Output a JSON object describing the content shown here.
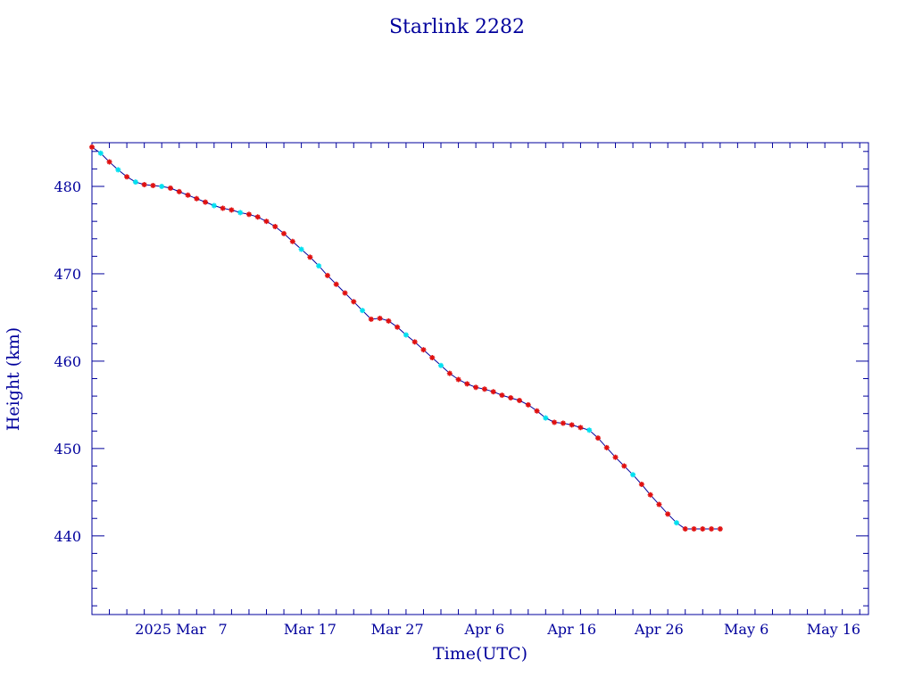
{
  "chart_data": {
    "type": "scatter",
    "title": "Starlink 2282",
    "xlabel": "Time(UTC)",
    "ylabel": "Height (km)",
    "xlim": [
      "2025-02-20",
      "2025-05-20"
    ],
    "ylim": [
      431,
      485
    ],
    "x_ticks": [
      {
        "date": "2025-03-01",
        "label": "2025 Mar"
      },
      {
        "date": "2025-03-07",
        "label": "7"
      },
      {
        "date": "2025-03-17",
        "label": "Mar 17"
      },
      {
        "date": "2025-03-27",
        "label": "Mar 27"
      },
      {
        "date": "2025-04-06",
        "label": "Apr  6"
      },
      {
        "date": "2025-04-16",
        "label": "Apr 16"
      },
      {
        "date": "2025-04-26",
        "label": "Apr 26"
      },
      {
        "date": "2025-05-06",
        "label": "May  6"
      },
      {
        "date": "2025-05-16",
        "label": "May 16"
      }
    ],
    "y_ticks": [
      440,
      450,
      460,
      470,
      480
    ],
    "grid": false,
    "colors": {
      "axis": "#00009c",
      "points": "#e01010",
      "alt_points": "#00e0f0",
      "line": "#00009c"
    },
    "series": [
      {
        "x": [
          "2025-02-20",
          "2025-02-21",
          "2025-02-22",
          "2025-02-23",
          "2025-02-24",
          "2025-02-25",
          "2025-02-26",
          "2025-02-27",
          "2025-02-28",
          "2025-03-01",
          "2025-03-02",
          "2025-03-03",
          "2025-03-04",
          "2025-03-05",
          "2025-03-06",
          "2025-03-07",
          "2025-03-08",
          "2025-03-09",
          "2025-03-10",
          "2025-03-11",
          "2025-03-12",
          "2025-03-13",
          "2025-03-14",
          "2025-03-15",
          "2025-03-16",
          "2025-03-17",
          "2025-03-18",
          "2025-03-19",
          "2025-03-20",
          "2025-03-21",
          "2025-03-22",
          "2025-03-23",
          "2025-03-24",
          "2025-03-25",
          "2025-03-26",
          "2025-03-27",
          "2025-03-28",
          "2025-03-29",
          "2025-03-30",
          "2025-03-31",
          "2025-04-01",
          "2025-04-02",
          "2025-04-03",
          "2025-04-04",
          "2025-04-05",
          "2025-04-06",
          "2025-04-07",
          "2025-04-08",
          "2025-04-09",
          "2025-04-10",
          "2025-04-11",
          "2025-04-12",
          "2025-04-13",
          "2025-04-14",
          "2025-04-15",
          "2025-04-16",
          "2025-04-17",
          "2025-04-18",
          "2025-04-19",
          "2025-04-20",
          "2025-04-21",
          "2025-04-22",
          "2025-04-23",
          "2025-04-24",
          "2025-04-25",
          "2025-04-26",
          "2025-04-27",
          "2025-04-28",
          "2025-04-29",
          "2025-04-30",
          "2025-05-01",
          "2025-05-02",
          "2025-05-03"
        ],
        "y": [
          484.5,
          483.8,
          482.8,
          481.9,
          481.1,
          480.5,
          480.2,
          480.1,
          480.0,
          479.8,
          479.4,
          479.0,
          478.6,
          478.2,
          477.8,
          477.5,
          477.3,
          477.0,
          476.8,
          476.5,
          476.0,
          475.4,
          474.6,
          473.7,
          472.8,
          471.9,
          470.9,
          469.8,
          468.8,
          467.8,
          466.8,
          465.8,
          464.8,
          464.9,
          464.6,
          463.9,
          463.0,
          462.2,
          461.3,
          460.4,
          459.5,
          458.6,
          457.9,
          457.4,
          457.0,
          456.8,
          456.5,
          456.1,
          455.8,
          455.5,
          455.0,
          454.3,
          453.5,
          453.0,
          452.9,
          452.7,
          452.4,
          452.1,
          451.2,
          450.1,
          449.0,
          448.0,
          447.0,
          445.9,
          444.7,
          443.6,
          442.5,
          441.5,
          440.8,
          440.8,
          440.8,
          440.8,
          440.8
        ],
        "alt": [
          false,
          true,
          false,
          true,
          false,
          true,
          false,
          false,
          true,
          false,
          false,
          false,
          false,
          false,
          true,
          false,
          false,
          true,
          false,
          false,
          false,
          false,
          false,
          false,
          true,
          false,
          true,
          false,
          false,
          false,
          false,
          true,
          false,
          false,
          false,
          false,
          true,
          false,
          false,
          false,
          true,
          false,
          false,
          false,
          false,
          false,
          false,
          false,
          false,
          false,
          false,
          false,
          true,
          false,
          false,
          false,
          false,
          true,
          false,
          false,
          false,
          false,
          true,
          false,
          false,
          false,
          false,
          true,
          false,
          false,
          false,
          false,
          false
        ]
      }
    ]
  }
}
